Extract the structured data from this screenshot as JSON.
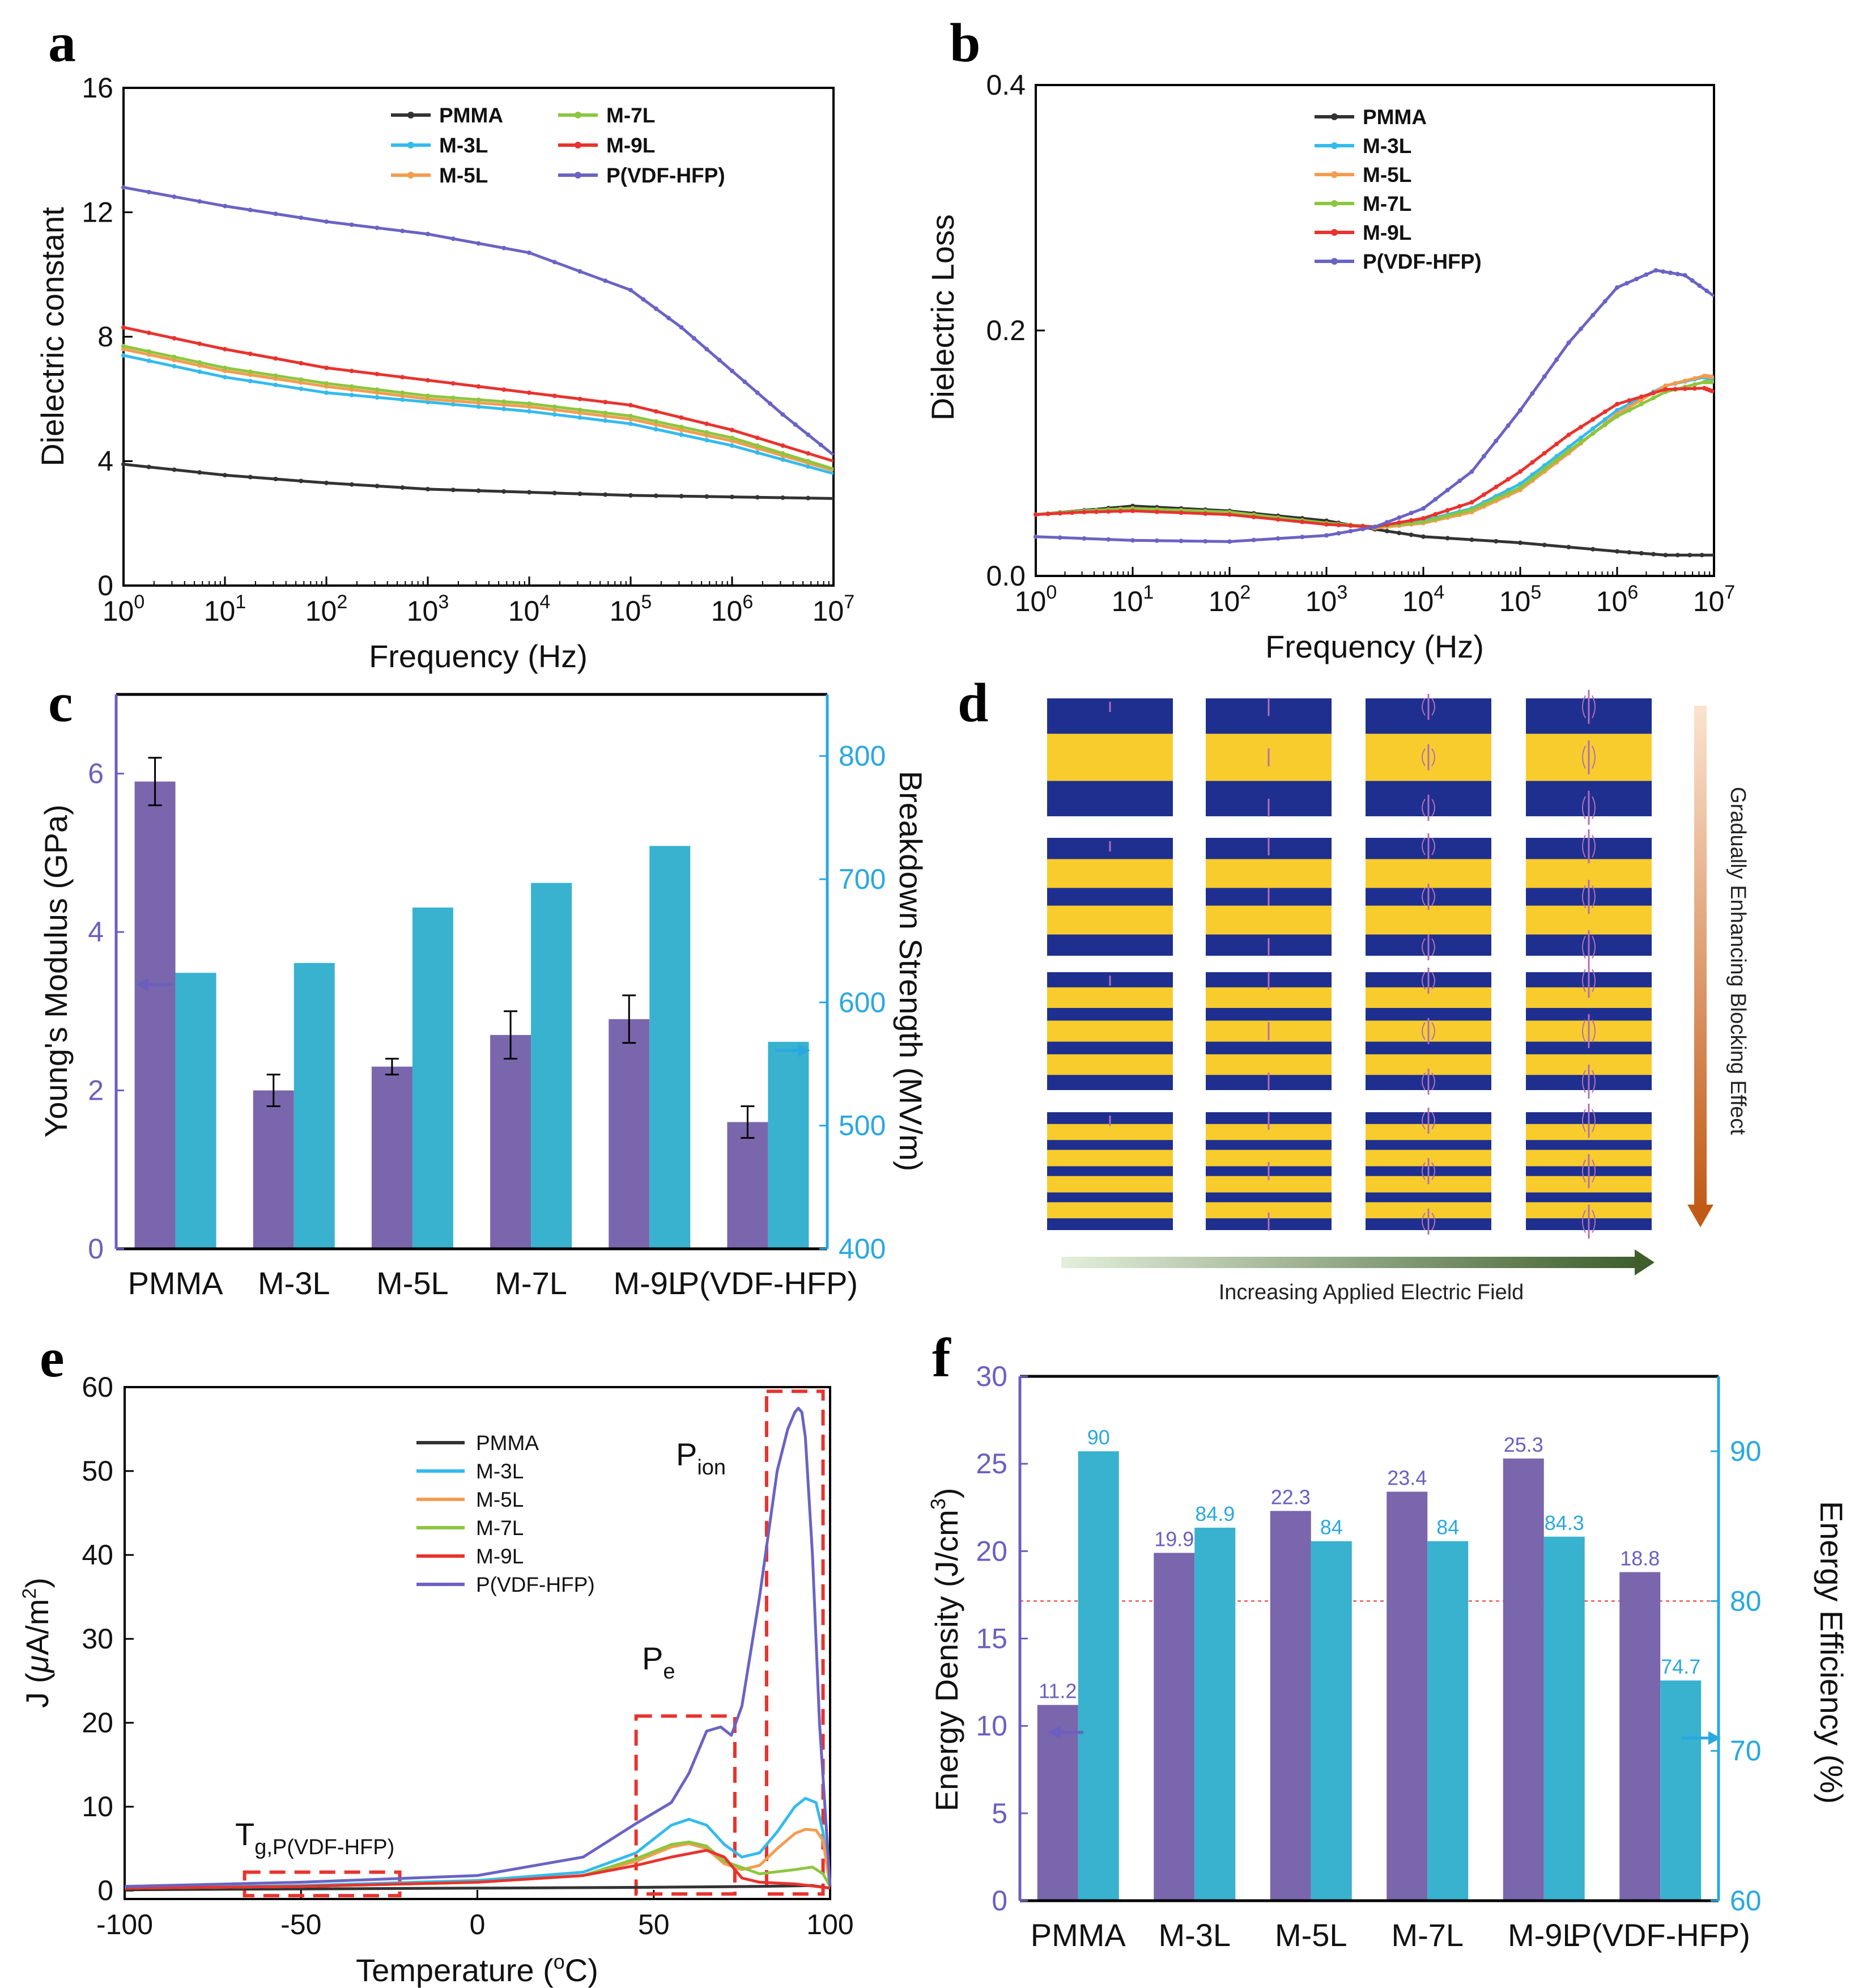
{
  "colors": {
    "PMMA": "#333333",
    "M-3L": "#33bbee",
    "M-5L": "#f39c4f",
    "M-7L": "#8cc63f",
    "M-9L": "#e8332e",
    "P(VDF-HFP)": "#6a63c4",
    "bar_purple": "#7a66ac",
    "bar_cyan": "#38b2cf",
    "cyan_axis": "#29a8e0",
    "purple_axis": "#6a5fc0",
    "dashed_red": "#e8332e",
    "yellow": "#f7cc2c",
    "navy": "#1e2f8f"
  },
  "chart_data": [
    {
      "id": "a",
      "panel_label": "a",
      "type": "line",
      "xscale": "log",
      "xlabel": "Frequency (Hz)",
      "ylabel": "Dielectric constant",
      "xlim": [
        1,
        10000000
      ],
      "ylim": [
        0,
        16
      ],
      "yticks": [
        "0",
        "4",
        "8",
        "12",
        "16"
      ],
      "xtick_base": "10",
      "xtick_exponents": [
        "0",
        "1",
        "2",
        "3",
        "4",
        "5",
        "6",
        "7"
      ],
      "legend": [
        "PMMA",
        "M-7L",
        "M-3L",
        "M-9L",
        "M-5L",
        "P(VDF-HFP)"
      ],
      "legend_position": "top-right",
      "series": [
        {
          "name": "PMMA",
          "x_log10": [
            0,
            1,
            2,
            3,
            4,
            5,
            6,
            7
          ],
          "values": [
            3.9,
            3.55,
            3.3,
            3.1,
            3.0,
            2.9,
            2.85,
            2.8
          ]
        },
        {
          "name": "M-3L",
          "x_log10": [
            0,
            1,
            2,
            3,
            4,
            5,
            6,
            7
          ],
          "values": [
            7.4,
            6.7,
            6.2,
            5.9,
            5.6,
            5.2,
            4.5,
            3.6
          ]
        },
        {
          "name": "M-5L",
          "x_log10": [
            0,
            1,
            2,
            3,
            4,
            5,
            6,
            7
          ],
          "values": [
            7.6,
            6.9,
            6.4,
            6.0,
            5.75,
            5.35,
            4.65,
            3.7
          ]
        },
        {
          "name": "M-7L",
          "x_log10": [
            0,
            1,
            2,
            3,
            4,
            5,
            6,
            7
          ],
          "values": [
            7.7,
            7.0,
            6.5,
            6.1,
            5.85,
            5.45,
            4.75,
            3.75
          ]
        },
        {
          "name": "M-9L",
          "x_log10": [
            0,
            1,
            2,
            3,
            4,
            5,
            6,
            7
          ],
          "values": [
            8.3,
            7.6,
            7.0,
            6.6,
            6.2,
            5.8,
            5.0,
            4.0
          ]
        },
        {
          "name": "P(VDF-HFP)",
          "x_log10": [
            0,
            1,
            2,
            3,
            4,
            5,
            5.5,
            6,
            6.5,
            7
          ],
          "values": [
            12.8,
            12.2,
            11.7,
            11.3,
            10.7,
            9.5,
            8.3,
            6.9,
            5.5,
            4.2
          ]
        }
      ]
    },
    {
      "id": "b",
      "panel_label": "b",
      "type": "line",
      "xscale": "log",
      "xlabel": "Frequency (Hz)",
      "ylabel": "Dielectric Loss",
      "xlim": [
        1,
        10000000
      ],
      "ylim": [
        0,
        0.4
      ],
      "yticks": [
        "0.0",
        "0.2",
        "0.4"
      ],
      "xtick_base": "10",
      "xtick_exponents": [
        "0",
        "1",
        "2",
        "3",
        "4",
        "5",
        "6",
        "7"
      ],
      "legend": [
        "PMMA",
        "M-3L",
        "M-5L",
        "M-7L",
        "M-9L",
        "P(VDF-HFP)"
      ],
      "legend_position": "top-center",
      "series": [
        {
          "name": "PMMA",
          "x_log10": [
            0,
            1,
            2,
            3,
            3.5,
            4,
            5,
            6,
            6.5,
            7
          ],
          "values": [
            0.05,
            0.057,
            0.053,
            0.045,
            0.038,
            0.032,
            0.027,
            0.02,
            0.017,
            0.017
          ]
        },
        {
          "name": "M-3L",
          "x_log10": [
            0,
            0.5,
            1,
            2,
            3,
            3.5,
            4,
            4.5,
            5,
            5.5,
            6,
            6.5,
            6.9,
            7
          ],
          "values": [
            0.05,
            0.053,
            0.055,
            0.052,
            0.043,
            0.04,
            0.045,
            0.055,
            0.075,
            0.105,
            0.135,
            0.155,
            0.162,
            0.16
          ]
        },
        {
          "name": "M-5L",
          "x_log10": [
            0,
            0.5,
            1,
            2,
            3,
            3.5,
            4,
            4.5,
            5,
            5.5,
            6,
            6.5,
            6.9,
            7
          ],
          "values": [
            0.05,
            0.053,
            0.055,
            0.052,
            0.043,
            0.039,
            0.043,
            0.052,
            0.07,
            0.1,
            0.132,
            0.155,
            0.163,
            0.162
          ]
        },
        {
          "name": "M-7L",
          "x_log10": [
            0,
            0.5,
            1,
            2,
            3,
            3.5,
            4,
            4.5,
            5,
            5.5,
            6,
            6.5,
            6.9,
            7
          ],
          "values": [
            0.05,
            0.053,
            0.055,
            0.052,
            0.043,
            0.04,
            0.044,
            0.054,
            0.072,
            0.102,
            0.13,
            0.15,
            0.158,
            0.158
          ]
        },
        {
          "name": "M-9L",
          "x_log10": [
            0,
            0.5,
            1,
            2,
            3,
            3.5,
            4,
            4.5,
            5,
            5.5,
            6,
            6.5,
            6.9,
            7
          ],
          "values": [
            0.05,
            0.052,
            0.053,
            0.05,
            0.042,
            0.04,
            0.047,
            0.06,
            0.085,
            0.115,
            0.14,
            0.152,
            0.153,
            0.15
          ]
        },
        {
          "name": "P(VDF-HFP)",
          "x_log10": [
            0,
            1,
            2,
            3,
            3.5,
            4,
            4.5,
            5,
            5.5,
            6,
            6.4,
            6.7,
            7
          ],
          "values": [
            0.032,
            0.029,
            0.028,
            0.033,
            0.04,
            0.055,
            0.085,
            0.135,
            0.19,
            0.235,
            0.249,
            0.245,
            0.228
          ]
        }
      ]
    },
    {
      "id": "c",
      "panel_label": "c",
      "type": "bar",
      "categories": [
        "PMMA",
        "M-3L",
        "M-5L",
        "M-7L",
        "M-9L",
        "P(VDF-HFP)"
      ],
      "ylabel": "Young's Modulus (GPa)",
      "y2label": "Breakdown Strength (MV/m)",
      "ylim": [
        0,
        7
      ],
      "y2lim": [
        400,
        850
      ],
      "yticks": [
        "0",
        "2",
        "4",
        "6"
      ],
      "y2ticks": [
        "400",
        "500",
        "600",
        "700",
        "800"
      ],
      "series": [
        {
          "name": "Young's Modulus",
          "axis": "left",
          "values": [
            5.9,
            2.0,
            2.3,
            2.7,
            2.9,
            1.6
          ],
          "errors": [
            0.3,
            0.2,
            0.1,
            0.3,
            0.3,
            0.2
          ]
        },
        {
          "name": "Breakdown Strength",
          "axis": "right",
          "values": [
            624,
            632,
            677,
            697,
            727,
            568
          ]
        }
      ]
    },
    {
      "id": "e",
      "panel_label": "e",
      "type": "line",
      "xlabel_prefix": "Temperature (",
      "xlabel_sup": "o",
      "xlabel_suffix": "C)",
      "ylabel_prefix": "J (",
      "ylabel_mu": "μ",
      "ylabel_unit": "A/m",
      "ylabel_sup": "2",
      "ylabel_suffix": ")",
      "xlim": [
        -100,
        100
      ],
      "ylim": [
        -1,
        60
      ],
      "xticks": [
        "-100",
        "-50",
        "0",
        "50",
        "100"
      ],
      "yticks": [
        "0",
        "10",
        "20",
        "30",
        "40",
        "50",
        "60"
      ],
      "legend": [
        "PMMA",
        "M-3L",
        "M-5L",
        "M-7L",
        "M-9L",
        "P(VDF-HFP)"
      ],
      "legend_position": "top-right",
      "annotations": {
        "ion_main": "P",
        "ion_sub": "ion",
        "e_main": "P",
        "e_sub": "e",
        "tg_main": "T",
        "tg_sub": "g,P(VDF-HFP)"
      },
      "series": [
        {
          "name": "PMMA",
          "x": [
            -100,
            -50,
            0,
            50,
            80,
            95,
            100
          ],
          "values": [
            0.1,
            0.2,
            0.3,
            0.4,
            0.5,
            0.6,
            0.3
          ]
        },
        {
          "name": "M-3L",
          "x": [
            -100,
            -50,
            0,
            30,
            45,
            55,
            60,
            65,
            70,
            75,
            80,
            85,
            90,
            93,
            96,
            98,
            100
          ],
          "values": [
            0.3,
            0.6,
            1.2,
            2.2,
            4.5,
            7.8,
            8.5,
            7.8,
            5.5,
            4.0,
            4.5,
            7.0,
            10.0,
            11.0,
            10.5,
            7.0,
            0.5
          ]
        },
        {
          "name": "M-5L",
          "x": [
            -100,
            -50,
            0,
            30,
            45,
            55,
            60,
            65,
            70,
            75,
            80,
            85,
            90,
            93,
            96,
            98,
            100
          ],
          "values": [
            0.3,
            0.5,
            1.0,
            1.8,
            3.5,
            5.2,
            5.6,
            5.0,
            3.2,
            2.5,
            3.0,
            5.0,
            6.8,
            7.3,
            7.2,
            6.0,
            0.5
          ]
        },
        {
          "name": "M-7L",
          "x": [
            -100,
            -50,
            0,
            30,
            45,
            55,
            60,
            65,
            70,
            80,
            90,
            95,
            98,
            100
          ],
          "values": [
            0.3,
            0.5,
            1.0,
            1.8,
            3.8,
            5.5,
            5.8,
            5.3,
            3.5,
            2.0,
            2.5,
            2.8,
            2.0,
            0.5
          ]
        },
        {
          "name": "M-9L",
          "x": [
            -100,
            -50,
            0,
            30,
            45,
            55,
            65,
            70,
            75,
            80,
            90,
            100
          ],
          "values": [
            0.3,
            0.5,
            1.0,
            1.8,
            3.0,
            4.0,
            4.8,
            4.0,
            1.5,
            1.0,
            0.8,
            0.3
          ]
        },
        {
          "name": "P(VDF-HFP)",
          "x": [
            -100,
            -50,
            0,
            30,
            45,
            55,
            60,
            65,
            69,
            72,
            75,
            80,
            85,
            88,
            90,
            91,
            92,
            93,
            95,
            97,
            100
          ],
          "values": [
            0.5,
            1.0,
            1.8,
            4.0,
            8.0,
            10.5,
            14.0,
            19.0,
            19.5,
            18.5,
            22.0,
            35.0,
            50.0,
            55.0,
            57.0,
            57.5,
            57.0,
            54.0,
            40.0,
            20.0,
            0.5
          ]
        }
      ]
    },
    {
      "id": "f",
      "panel_label": "f",
      "type": "bar",
      "categories": [
        "PMMA",
        "M-3L",
        "M-5L",
        "M-7L",
        "M-9L",
        "P(VDF-HFP)"
      ],
      "ylabel_prefix": "Energy Density (J/cm",
      "ylabel_sup": "3",
      "ylabel_suffix": ")",
      "y2label": "Energy Efficiency (%)",
      "ylim": [
        0,
        30
      ],
      "y2lim": [
        60,
        95
      ],
      "yticks": [
        "0",
        "5",
        "10",
        "15",
        "20",
        "25",
        "30"
      ],
      "y2ticks": [
        "60",
        "70",
        "80",
        "90"
      ],
      "reference_line": 80,
      "series": [
        {
          "name": "Energy Density",
          "axis": "left",
          "values": [
            11.2,
            19.9,
            22.3,
            23.4,
            25.3,
            18.8
          ],
          "labels": [
            "11.2",
            "19.9",
            "22.3",
            "23.4",
            "25.3",
            "18.8"
          ]
        },
        {
          "name": "Energy Efficiency",
          "axis": "right",
          "values": [
            90,
            84.9,
            84,
            84,
            84.3,
            74.7
          ],
          "labels": [
            "90",
            "84.9",
            "84",
            "84",
            "84.3",
            "74.7"
          ]
        }
      ]
    }
  ],
  "panel_d": {
    "panel_label": "d",
    "rows": 4,
    "cols": 4,
    "layer_counts": [
      3,
      5,
      7,
      9
    ],
    "vertical_caption": "Gradually Enhancing Blocking Effect",
    "horizontal_caption": "Increasing Applied Electric Field"
  }
}
